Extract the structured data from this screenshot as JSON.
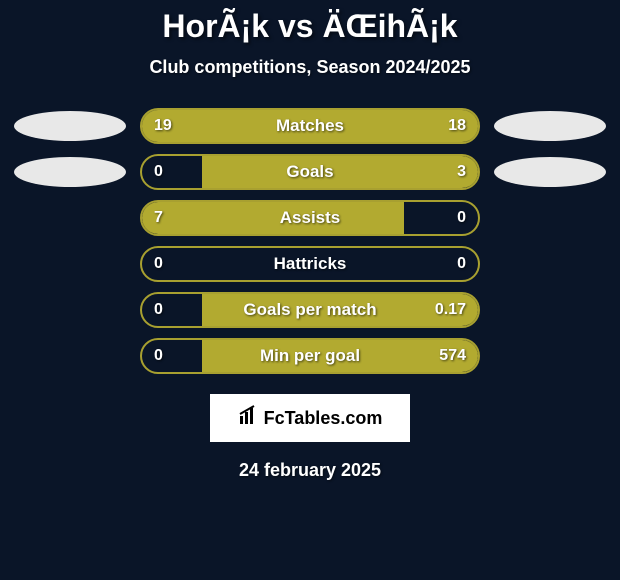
{
  "header": {
    "title": "HorÃ¡k vs ÄŒihÃ¡k",
    "subtitle": "Club competitions, Season 2024/2025"
  },
  "chart": {
    "background_color": "#0a1528",
    "bar_border_color": "#a8a030",
    "bar_fill_color": "#b2aa30",
    "ellipse_color": "#e8e8e8",
    "text_color": "#ffffff",
    "rows": [
      {
        "label": "Matches",
        "left_value": "19",
        "right_value": "18",
        "fill_side": "full",
        "fill_percent": 100,
        "show_left_ellipse": true,
        "show_right_ellipse": true
      },
      {
        "label": "Goals",
        "left_value": "0",
        "right_value": "3",
        "fill_side": "right",
        "fill_percent": 82,
        "show_left_ellipse": true,
        "show_right_ellipse": true
      },
      {
        "label": "Assists",
        "left_value": "7",
        "right_value": "0",
        "fill_side": "left",
        "fill_percent": 78,
        "show_left_ellipse": false,
        "show_right_ellipse": false
      },
      {
        "label": "Hattricks",
        "left_value": "0",
        "right_value": "0",
        "fill_side": "none",
        "fill_percent": 0,
        "show_left_ellipse": false,
        "show_right_ellipse": false
      },
      {
        "label": "Goals per match",
        "left_value": "0",
        "right_value": "0.17",
        "fill_side": "right",
        "fill_percent": 82,
        "show_left_ellipse": false,
        "show_right_ellipse": false
      },
      {
        "label": "Min per goal",
        "left_value": "0",
        "right_value": "574",
        "fill_side": "right",
        "fill_percent": 82,
        "show_left_ellipse": false,
        "show_right_ellipse": false
      }
    ]
  },
  "footer": {
    "logo_text": "FcTables.com",
    "date": "24 february 2025"
  }
}
